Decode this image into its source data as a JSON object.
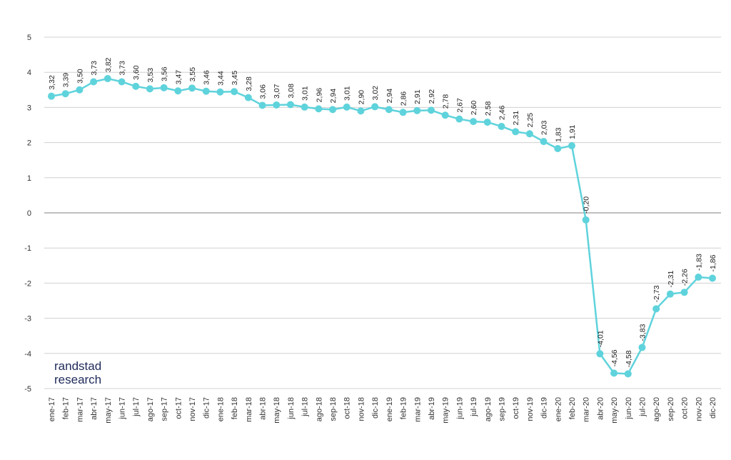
{
  "chart_data": {
    "type": "line",
    "categories": [
      "ene-17",
      "feb-17",
      "mar-17",
      "abr-17",
      "may-17",
      "jun-17",
      "jul-17",
      "ago-17",
      "sep-17",
      "oct-17",
      "nov-17",
      "dic-17",
      "ene-18",
      "feb-18",
      "mar-18",
      "abr-18",
      "may-18",
      "jun-18",
      "jul-18",
      "ago-18",
      "sep-18",
      "oct-18",
      "nov-18",
      "dic-18",
      "ene-19",
      "feb-19",
      "mar-19",
      "abr-19",
      "may-19",
      "jun-19",
      "jul-19",
      "ago-19",
      "sep-19",
      "oct-19",
      "nov-19",
      "dic-19",
      "ene-20",
      "feb-20",
      "mar-20",
      "abr-20",
      "may-20",
      "jun-20",
      "jul-20",
      "ago-20",
      "sep-20",
      "oct-20",
      "nov-20",
      "dic-20"
    ],
    "series": [
      {
        "values": [
          3.32,
          3.39,
          3.5,
          3.73,
          3.82,
          3.73,
          3.6,
          3.53,
          3.56,
          3.47,
          3.55,
          3.46,
          3.44,
          3.45,
          3.28,
          3.06,
          3.07,
          3.08,
          3.01,
          2.96,
          2.94,
          3.01,
          2.9,
          3.02,
          2.94,
          2.86,
          2.91,
          2.92,
          2.78,
          2.67,
          2.6,
          2.58,
          2.46,
          2.31,
          2.25,
          2.03,
          1.83,
          1.91,
          -0.2,
          -4.01,
          -4.56,
          -4.58,
          -3.83,
          -2.73,
          -2.31,
          -2.26,
          -1.83,
          -1.86
        ],
        "data_labels": [
          "3,32",
          "3,39",
          "3,50",
          "3,73",
          "3,82",
          "3,73",
          "3,60",
          "3,53",
          "3,56",
          "3,47",
          "3,55",
          "3,46",
          "3,44",
          "3,45",
          "3,28",
          "3,06",
          "3,07",
          "3,08",
          "3,01",
          "2,96",
          "2,94",
          "3,01",
          "2,90",
          "3,02",
          "2,94",
          "2,86",
          "2,91",
          "2,92",
          "2,78",
          "2,67",
          "2,60",
          "2,58",
          "2,46",
          "2,31",
          "2,25",
          "2,03",
          "1,83",
          "1,91",
          "-0,20",
          "-4,01",
          "-4,56",
          "-4,58",
          "-3,83",
          "-2,73",
          "-2,31",
          "-2,26",
          "-1,83",
          "-1,86"
        ]
      }
    ],
    "yticks": [
      5,
      4,
      3,
      2,
      1,
      0,
      -1,
      -2,
      -3,
      -4,
      -5
    ],
    "ylim": [
      -5,
      5
    ],
    "grid": true,
    "line_color": "#5fd3dc",
    "grid_color": "#d0d0d0",
    "zero_line_color": "#999999"
  },
  "brand": {
    "line1": "randstad",
    "line2": "research"
  }
}
